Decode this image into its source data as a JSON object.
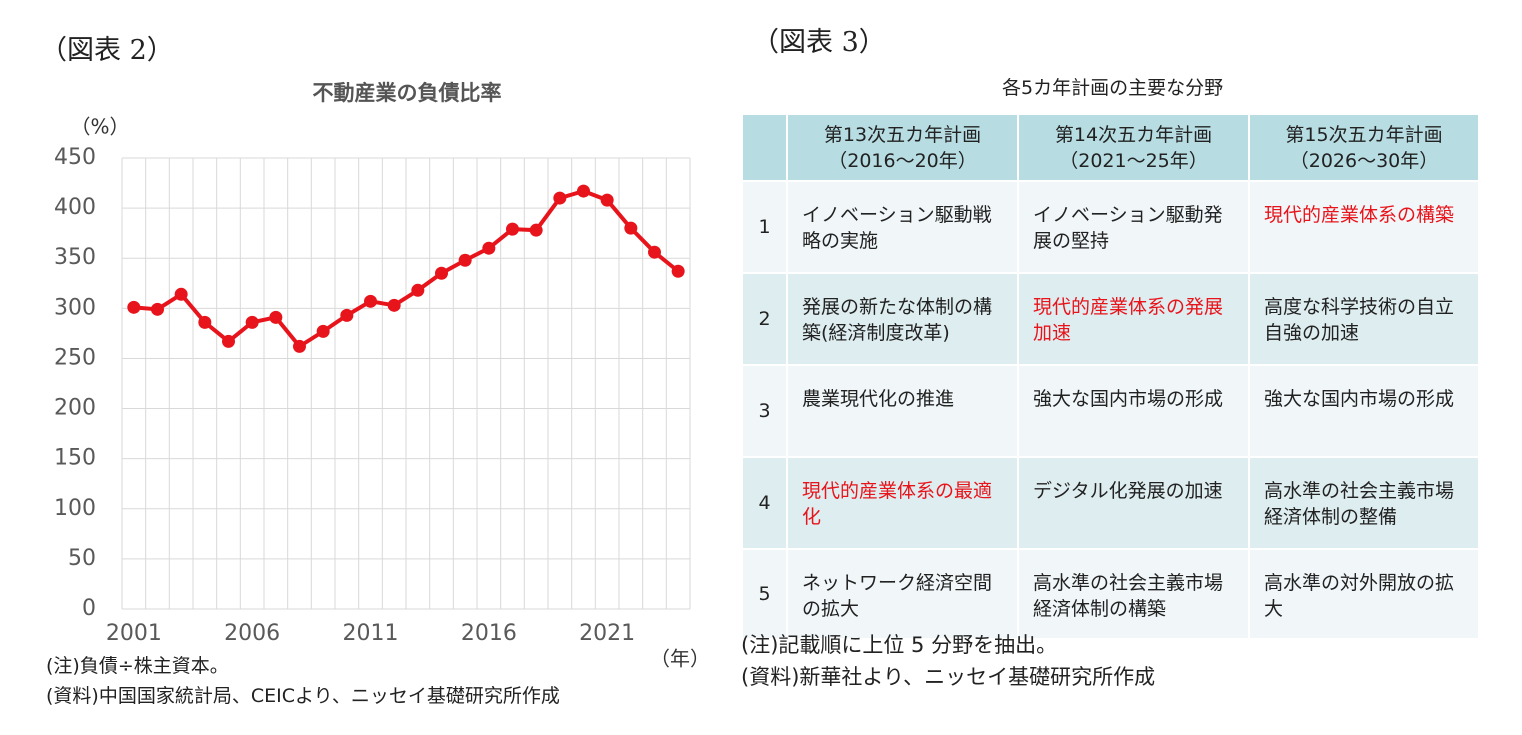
{
  "figure2_label": "（図表 2）",
  "figure3_label": "（図表 3）",
  "chart_data": {
    "type": "line",
    "title": "不動産業の負債比率",
    "y_label": "（%）",
    "x_label": "（年）",
    "categories": [
      "2001",
      null,
      null,
      null,
      null,
      "2006",
      null,
      null,
      null,
      null,
      "2011",
      null,
      null,
      null,
      null,
      "2016",
      null,
      null,
      null,
      null,
      "2021",
      null,
      null,
      null
    ],
    "values": [
      301,
      299,
      314,
      286,
      267,
      286,
      291,
      262,
      277,
      293,
      307,
      303,
      318,
      335,
      348,
      360,
      379,
      378,
      410,
      417,
      408,
      380,
      356,
      337
    ],
    "color": "#e8141b",
    "ylim": [
      0,
      450
    ],
    "yticks": [
      0,
      50,
      100,
      150,
      200,
      250,
      300,
      350,
      400,
      450
    ],
    "grid": true
  },
  "chart_notes": [
    "(注)負債÷株主資本。",
    "(資料)中国国家統計局、CEICより、ニッセイ基礎研究所作成"
  ],
  "table": {
    "title": "各5カ年計画の主要な分野",
    "header": [
      [
        "第13次五カ年計画",
        "（2016～20年）"
      ],
      [
        "第14次五カ年計画",
        "（2021～25年）"
      ],
      [
        "第15次五カ年計画",
        "（2026～30年）"
      ]
    ],
    "rows": [
      {
        "no": 1,
        "cells": [
          {
            "text": "イノベーション駆動戦略の実施"
          },
          {
            "text": "イノベーション駆動発展の堅持"
          },
          {
            "text": "現代的産業体系の構築",
            "color": "#e8141b"
          }
        ]
      },
      {
        "no": 2,
        "cells": [
          {
            "text": "発展の新たな体制の構築(経済制度改革)"
          },
          {
            "text": "現代的産業体系の発展加速",
            "color": "#e8141b"
          },
          {
            "text": "高度な科学技術の自立自強の加速"
          }
        ]
      },
      {
        "no": 3,
        "cells": [
          {
            "text": "農業現代化の推進"
          },
          {
            "text": "強大な国内市場の形成"
          },
          {
            "text": "強大な国内市場の形成"
          }
        ]
      },
      {
        "no": 4,
        "cells": [
          {
            "text": "現代的産業体系の最適化",
            "color": "#e8141b"
          },
          {
            "text": "デジタル化発展の加速"
          },
          {
            "text": "高水準の社会主義市場経済体制の整備"
          }
        ]
      },
      {
        "no": 5,
        "cells": [
          {
            "text": "ネットワーク経済空間の拡大"
          },
          {
            "text": "高水準の社会主義市場経済体制の構築"
          },
          {
            "text": "高水準の対外開放の拡大"
          }
        ]
      }
    ],
    "notes": [
      "(注)記載順に上位 5 分野を抽出。",
      "(資料)新華社より、ニッセイ基礎研究所作成"
    ]
  }
}
